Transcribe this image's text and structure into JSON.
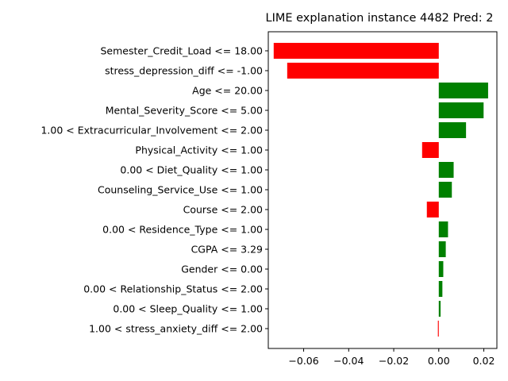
{
  "chart_data": {
    "type": "bar",
    "orientation": "horizontal",
    "title": "LIME explanation instance 4482 Pred: 2",
    "xlabel": "",
    "ylabel": "",
    "xlim": [
      -0.0757,
      0.0258
    ],
    "xticks": [
      -0.06,
      -0.04,
      -0.02,
      0.0,
      0.02
    ],
    "xtick_labels": [
      "−0.06",
      "−0.04",
      "−0.02",
      "0.00",
      "0.02"
    ],
    "grid": false,
    "legend": "none",
    "colors": {
      "positive": "#008000",
      "negative": "#ff0000"
    },
    "categories": [
      "Semester_Credit_Load <= 18.00",
      "stress_depression_diff <= -1.00",
      "Age <= 20.00",
      "Mental_Severity_Score <= 5.00",
      "1.00 < Extracurricular_Involvement <= 2.00",
      "Physical_Activity <= 1.00",
      "0.00 < Diet_Quality <= 1.00",
      "Counseling_Service_Use <= 1.00",
      "Course <= 2.00",
      "0.00 < Residence_Type <= 1.00",
      "CGPA <= 3.29",
      "Gender <= 0.00",
      "0.00 < Relationship_Status <= 2.00",
      "0.00 < Sleep_Quality <= 1.00",
      "1.00 < stress_anxiety_diff <= 2.00"
    ],
    "values": [
      -0.0733,
      -0.0673,
      0.0219,
      0.0199,
      0.0121,
      -0.0074,
      0.0066,
      0.0058,
      -0.0053,
      0.0041,
      0.0031,
      0.002,
      0.0016,
      0.0008,
      -0.0004
    ]
  }
}
